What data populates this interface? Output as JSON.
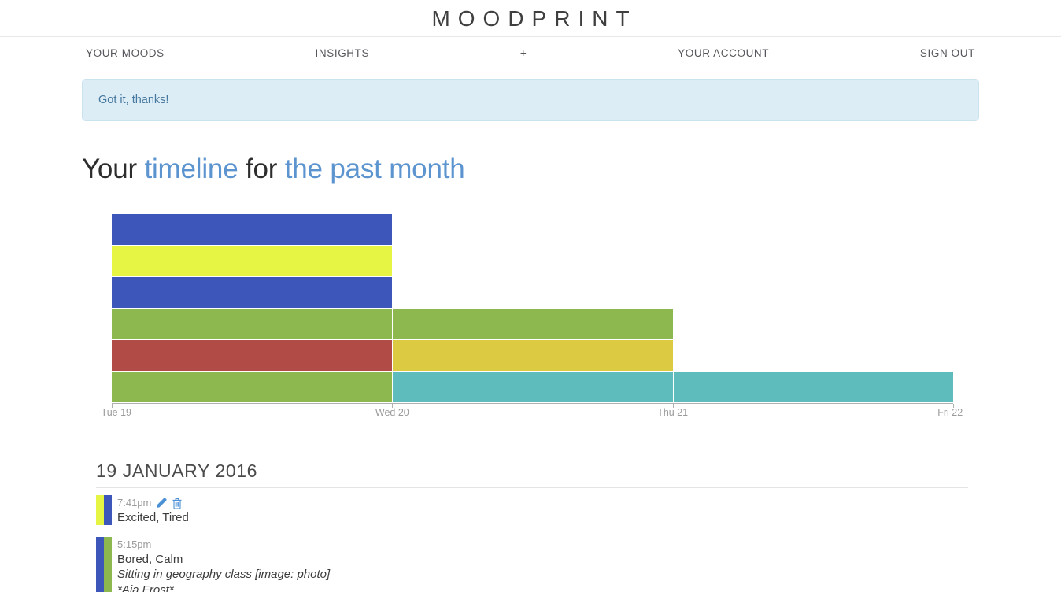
{
  "header": {
    "logo": "MOODPRINT"
  },
  "nav": {
    "items": [
      {
        "label": "YOUR MOODS"
      },
      {
        "label": "INSIGHTS"
      },
      {
        "label": "+"
      },
      {
        "label": "YOUR ACCOUNT"
      },
      {
        "label": "SIGN OUT"
      }
    ]
  },
  "alert": {
    "message": "Got it, thanks!"
  },
  "page_title": {
    "parts": [
      {
        "text": "Your ",
        "highlight": false
      },
      {
        "text": "timeline",
        "highlight": true
      },
      {
        "text": " for ",
        "highlight": false
      },
      {
        "text": "the past month",
        "highlight": true
      }
    ]
  },
  "palette": {
    "blue": "#3d56b9",
    "chartreuse": "#e6f543",
    "green": "#8cb84f",
    "red": "#b04b46",
    "gold": "#dcca43",
    "teal": "#5fbcbd",
    "link_blue": "#5b94cf",
    "icon_blue": "#4a90d5",
    "alert_bg": "#ddedf6",
    "alert_text": "#45789e"
  },
  "chart_data": {
    "type": "timeline",
    "orientation": "horizontal-bars",
    "x_ticks": [
      "Tue 19",
      "Wed 20",
      "Thu 21",
      "Fri 22"
    ],
    "grid": false,
    "rows": [
      {
        "segments": [
          {
            "start": "Tue 19",
            "end": "Wed 20",
            "color": "#3d56b9"
          }
        ]
      },
      {
        "segments": [
          {
            "start": "Tue 19",
            "end": "Wed 20",
            "color": "#e6f543"
          }
        ]
      },
      {
        "segments": [
          {
            "start": "Tue 19",
            "end": "Wed 20",
            "color": "#3d56b9"
          }
        ]
      },
      {
        "segments": [
          {
            "start": "Tue 19",
            "end": "Thu 21",
            "color": "#8cb84f"
          }
        ]
      },
      {
        "segments": [
          {
            "start": "Tue 19",
            "end": "Wed 20",
            "color": "#b04b46"
          },
          {
            "start": "Wed 20",
            "end": "Thu 21",
            "color": "#dcca43"
          }
        ]
      },
      {
        "segments": [
          {
            "start": "Tue 19",
            "end": "Wed 20",
            "color": "#8cb84f"
          },
          {
            "start": "Wed 20",
            "end": "Fri 22",
            "color": "#5fbcbd"
          }
        ]
      }
    ]
  },
  "day_section": {
    "heading": "19 JANUARY 2016",
    "entries": [
      {
        "time": "7:41pm",
        "moods": "Excited, Tired",
        "strip_colors": [
          "#e6f543",
          "#3d56b9"
        ],
        "has_actions": true
      },
      {
        "time": "5:15pm",
        "moods": "Bored, Calm",
        "note": "Sitting in geography class [image: photo]",
        "signature": "*Aja Frost*",
        "strip_colors": [
          "#3d56b9",
          "#8cb84f"
        ],
        "has_actions": false
      }
    ]
  }
}
